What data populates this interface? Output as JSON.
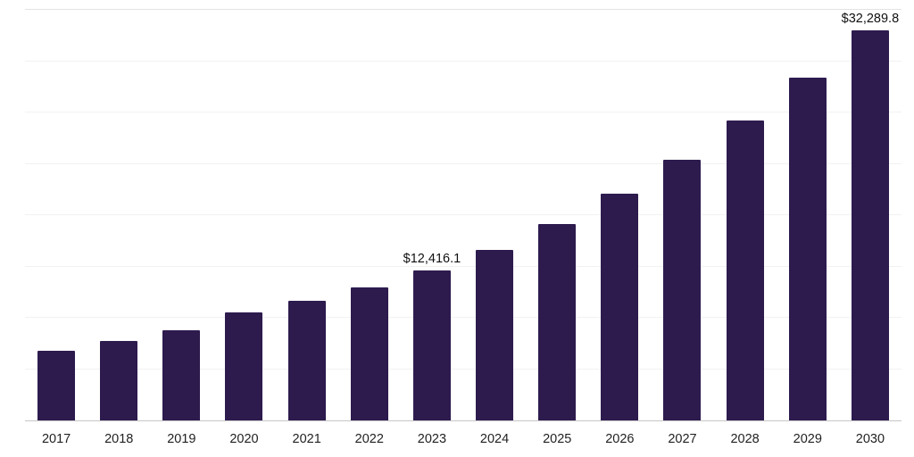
{
  "chart_data": {
    "type": "bar",
    "title": "",
    "xlabel": "",
    "ylabel": "",
    "categories": [
      "2017",
      "2018",
      "2019",
      "2020",
      "2021",
      "2022",
      "2023",
      "2024",
      "2025",
      "2026",
      "2027",
      "2028",
      "2029",
      "2030"
    ],
    "values": [
      5800,
      6600,
      7500,
      8950,
      9900,
      11050,
      12416.1,
      14150,
      16250,
      18800,
      21600,
      24800,
      28350,
      32289.8
    ],
    "value_labels": [
      "",
      "",
      "",
      "",
      "",
      "",
      "$12,416.1",
      "",
      "",
      "",
      "",
      "",
      "",
      "$32,289.8"
    ],
    "ylim": [
      0,
      34000
    ],
    "grid": true,
    "gridline_count": 8,
    "legend": "none",
    "bar_color": "#2d1b4e",
    "gridline_color": "#f2f2f2",
    "axis_line_color": "#c7c7c7",
    "label_color": "#111111"
  }
}
